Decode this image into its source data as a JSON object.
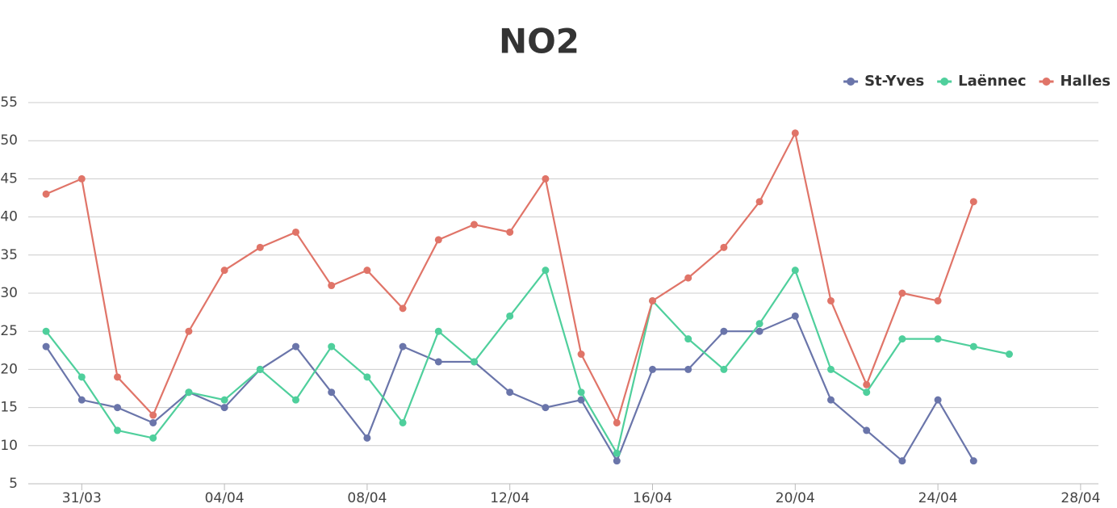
{
  "chart_data": {
    "type": "line",
    "title": "NO2",
    "categories": [
      null,
      "31/03",
      null,
      null,
      null,
      "04/04",
      null,
      null,
      null,
      "08/04",
      null,
      null,
      null,
      "12/04",
      null,
      null,
      null,
      "16/04",
      null,
      null,
      null,
      "20/04",
      null,
      null,
      null,
      "24/04",
      null,
      null,
      null,
      "28/04"
    ],
    "series": [
      {
        "name": "St-Yves",
        "color": "#6a75aa",
        "values": [
          23,
          16,
          15,
          13,
          17,
          15,
          20,
          23,
          17,
          11,
          23,
          21,
          21,
          17,
          15,
          16,
          8,
          20,
          20,
          25,
          25,
          27,
          16,
          12,
          8,
          16,
          8,
          null,
          null,
          null
        ]
      },
      {
        "name": "Laënnec",
        "color": "#4fcf9c",
        "values": [
          25,
          19,
          12,
          11,
          17,
          16,
          20,
          16,
          23,
          19,
          13,
          25,
          21,
          27,
          33,
          17,
          9,
          29,
          24,
          20,
          26,
          33,
          20,
          17,
          24,
          24,
          23,
          22,
          null,
          null
        ]
      },
      {
        "name": "Halles",
        "color": "#e07468",
        "values": [
          43,
          45,
          19,
          14,
          25,
          33,
          36,
          38,
          31,
          33,
          28,
          37,
          39,
          38,
          45,
          22,
          13,
          29,
          32,
          36,
          42,
          51,
          29,
          18,
          30,
          29,
          42,
          null,
          null,
          null
        ]
      }
    ],
    "ylim": [
      5,
      55
    ],
    "yticks": [
      5,
      10,
      15,
      20,
      25,
      30,
      35,
      40,
      45,
      50,
      55
    ],
    "grid": true,
    "legend": "top-right"
  }
}
